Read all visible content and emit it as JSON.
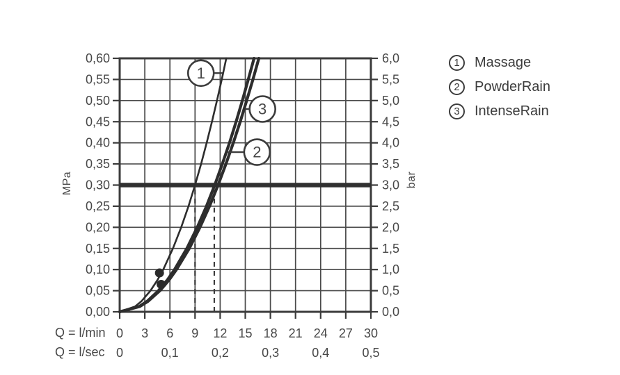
{
  "figure": {
    "background": "#ffffff",
    "ink_color": "#3b3b3b",
    "grid_color": "#4a4a4a",
    "text_color": "#474747",
    "curve_color": "#2d2d2d"
  },
  "chart_data": {
    "type": "line",
    "title": "",
    "grid": true,
    "legend_position": "top-right",
    "x_axis": {
      "label_primary": "Q = l/min",
      "label_secondary": "Q = l/sec",
      "range_lmin": [
        0,
        30
      ],
      "tick_step_lmin": 3,
      "tick_labels_lmin": [
        "0",
        "3",
        "6",
        "9",
        "12",
        "15",
        "18",
        "21",
        "24",
        "27",
        "30"
      ],
      "tick_labels_lsec": [
        {
          "text": "0",
          "at_lmin": 0
        },
        {
          "text": "0,1",
          "at_lmin": 6
        },
        {
          "text": "0,2",
          "at_lmin": 12
        },
        {
          "text": "0,3",
          "at_lmin": 18
        },
        {
          "text": "0,4",
          "at_lmin": 24
        },
        {
          "text": "0,5",
          "at_lmin": 30
        }
      ]
    },
    "y_axis_left": {
      "label": "MPa",
      "range_mpa": [
        0,
        0.6
      ],
      "tick_step_mpa": 0.05,
      "tick_labels": [
        "0,60",
        "0,55",
        "0,50",
        "0,45",
        "0,40",
        "0,35",
        "0,30",
        "0,25",
        "0,20",
        "0,15",
        "0,10",
        "0,05",
        "0,00"
      ]
    },
    "y_axis_right": {
      "label": "bar",
      "range_bar": [
        0,
        6
      ],
      "tick_labels": [
        "6,0",
        "5,5",
        "5,0",
        "4,5",
        "4,0",
        "3,5",
        "3,0",
        "2,5",
        "2,0",
        "1,5",
        "1,0",
        "0,5",
        "0,0"
      ]
    },
    "reference_line_mpa": 0.3,
    "dashed_guides_lmin": [
      9,
      11.3
    ],
    "series": [
      {
        "number": "1",
        "name": "Massage",
        "q_lmin_at_3bar": 9.0,
        "stroke_width": 2.6,
        "points_q_p": [
          [
            0,
            0
          ],
          [
            1.84,
            0.0125
          ],
          [
            2.6,
            0.025
          ],
          [
            3.67,
            0.05
          ],
          [
            4.5,
            0.075
          ],
          [
            5.2,
            0.1
          ],
          [
            6.36,
            0.15
          ],
          [
            7.35,
            0.2
          ],
          [
            8.22,
            0.25
          ],
          [
            9.0,
            0.3
          ],
          [
            9.72,
            0.35
          ],
          [
            10.39,
            0.4
          ],
          [
            11.02,
            0.45
          ],
          [
            11.62,
            0.5
          ],
          [
            12.19,
            0.55
          ],
          [
            12.73,
            0.6
          ]
        ]
      },
      {
        "number": "2",
        "name": "PowderRain",
        "q_lmin_at_3bar": 11.35,
        "stroke_width": 4.2,
        "points_q_p": [
          [
            0,
            0
          ],
          [
            2.32,
            0.0125
          ],
          [
            3.28,
            0.025
          ],
          [
            4.63,
            0.05
          ],
          [
            5.68,
            0.075
          ],
          [
            6.55,
            0.1
          ],
          [
            8.02,
            0.15
          ],
          [
            9.27,
            0.2
          ],
          [
            10.36,
            0.25
          ],
          [
            11.35,
            0.3
          ],
          [
            12.26,
            0.35
          ],
          [
            13.11,
            0.4
          ],
          [
            13.9,
            0.45
          ],
          [
            14.65,
            0.5
          ],
          [
            15.36,
            0.55
          ],
          [
            16.05,
            0.6
          ]
        ]
      },
      {
        "number": "3",
        "name": "IntenseRain",
        "q_lmin_at_3bar": 11.75,
        "stroke_width": 4.2,
        "points_q_p": [
          [
            0,
            0
          ],
          [
            2.4,
            0.0125
          ],
          [
            3.39,
            0.025
          ],
          [
            4.8,
            0.05
          ],
          [
            5.88,
            0.075
          ],
          [
            6.78,
            0.1
          ],
          [
            8.31,
            0.15
          ],
          [
            9.59,
            0.2
          ],
          [
            10.73,
            0.25
          ],
          [
            11.75,
            0.3
          ],
          [
            12.69,
            0.35
          ],
          [
            13.57,
            0.4
          ],
          [
            14.39,
            0.45
          ],
          [
            15.17,
            0.5
          ],
          [
            15.91,
            0.55
          ],
          [
            16.62,
            0.6
          ]
        ]
      }
    ],
    "markers_q_p": [
      [
        4.75,
        0.092
      ],
      [
        4.95,
        0.065
      ]
    ],
    "annotations": [
      {
        "number": "1",
        "series": "Massage",
        "circle_q": 9.7,
        "circle_p": 0.565,
        "leader_q": 12.35,
        "side": "right"
      },
      {
        "number": "3",
        "series": "IntenseRain",
        "circle_q": 17.05,
        "circle_p": 0.48,
        "leader_q": 15.0,
        "side": "left"
      },
      {
        "number": "2",
        "series": "PowderRain",
        "circle_q": 16.4,
        "circle_p": 0.378,
        "leader_q": 12.9,
        "side": "left"
      }
    ],
    "legend": [
      {
        "number": "1",
        "label": "Massage"
      },
      {
        "number": "2",
        "label": "PowderRain"
      },
      {
        "number": "3",
        "label": "IntenseRain"
      }
    ]
  }
}
